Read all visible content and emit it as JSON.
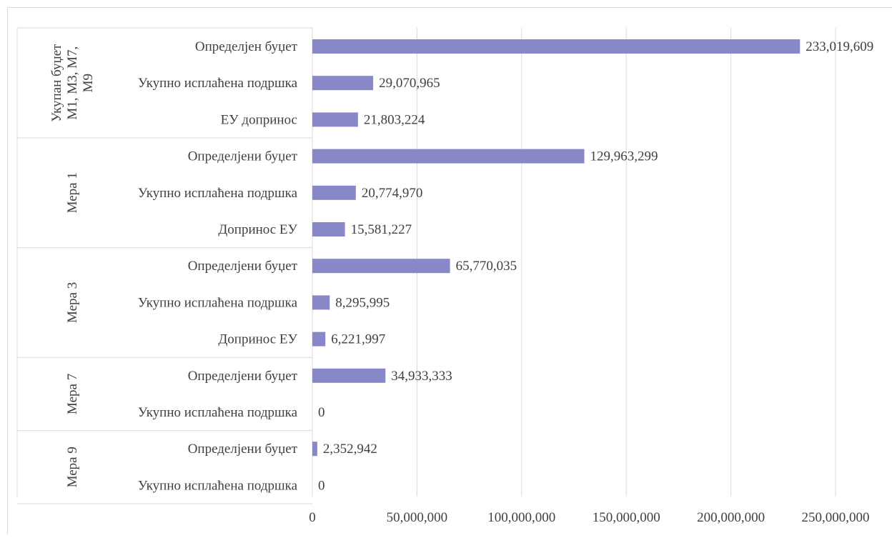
{
  "chart_data": {
    "type": "bar",
    "orientation": "horizontal",
    "title": "",
    "xlabel": "",
    "ylabel": "",
    "xlim": [
      0,
      250000000
    ],
    "x_ticks": [
      0,
      50000000,
      100000000,
      150000000,
      200000000,
      250000000
    ],
    "x_tick_labels": [
      "0",
      "50,000,000",
      "100,000,000",
      "150,000,000",
      "200,000,000",
      "250,000,000"
    ],
    "grid": true,
    "legend": "none",
    "bar_color": "#8888c8",
    "groups": [
      {
        "name": "Укупан буџет М1, М3, М7, М9",
        "name_lines": [
          "Укупан буџет",
          "М1, М3, М7,",
          "М9"
        ],
        "items": [
          {
            "label": "Определјен буџет",
            "value": 233019609,
            "value_label": "233,019,609"
          },
          {
            "label": "Укупно исплаћена подршка",
            "value": 29070965,
            "value_label": "29,070,965"
          },
          {
            "label": "ЕУ допринос",
            "value": 21803224,
            "value_label": "21,803,224"
          }
        ]
      },
      {
        "name": "Мера 1",
        "name_lines": [
          "Мера 1"
        ],
        "items": [
          {
            "label": "Определјени буџет",
            "value": 129963299,
            "value_label": "129,963,299"
          },
          {
            "label": "Укупно исплаћена подршка",
            "value": 20774970,
            "value_label": "20,774,970"
          },
          {
            "label": "Допринос ЕУ",
            "value": 15581227,
            "value_label": "15,581,227"
          }
        ]
      },
      {
        "name": "Мера 3",
        "name_lines": [
          "Мера 3"
        ],
        "items": [
          {
            "label": "Определјени буџет",
            "value": 65770035,
            "value_label": "65,770,035"
          },
          {
            "label": "Укупно исплаћена подршка",
            "value": 8295995,
            "value_label": "8,295,995"
          },
          {
            "label": "Допринос ЕУ",
            "value": 6221997,
            "value_label": "6,221,997"
          }
        ]
      },
      {
        "name": "Мера 7",
        "name_lines": [
          "Мера 7"
        ],
        "items": [
          {
            "label": "Определјени буџет",
            "value": 34933333,
            "value_label": "34,933,333"
          },
          {
            "label": "Укупно исплаћена подршка",
            "value": 0,
            "value_label": "0"
          }
        ]
      },
      {
        "name": "Мера 9",
        "name_lines": [
          "Мера 9"
        ],
        "items": [
          {
            "label": "Определјени буџет",
            "value": 2352942,
            "value_label": "2,352,942"
          },
          {
            "label": "Укупно исплаћена подршка",
            "value": 0,
            "value_label": "0"
          }
        ]
      }
    ]
  }
}
